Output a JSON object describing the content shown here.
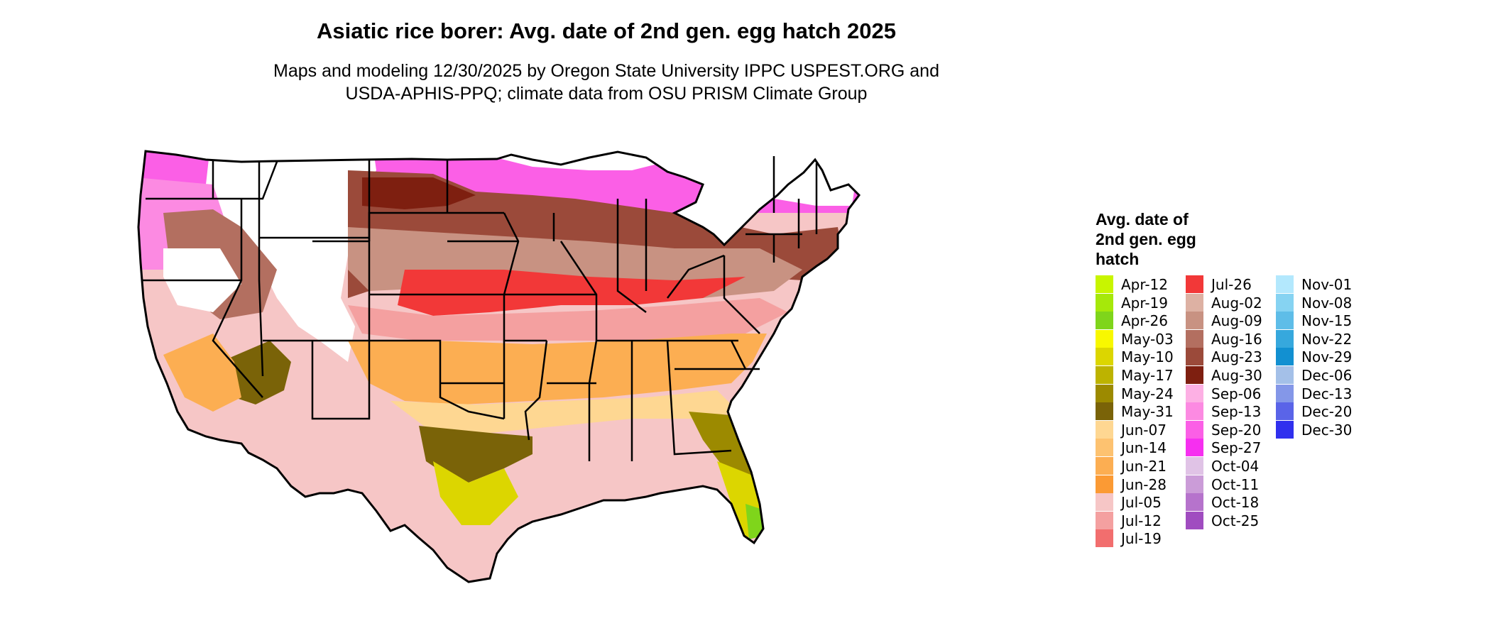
{
  "title": "Asiatic rice borer: Avg. date of 2nd gen. egg hatch 2025",
  "subtitle_lines": [
    "Maps and modeling 12/30/2025 by Oregon State University IPPC USPEST.ORG and",
    "USDA-APHIS-PPQ; climate data from OSU PRISM Climate Group"
  ],
  "legend": {
    "title_lines": [
      "Avg. date of",
      "2nd gen. egg",
      "hatch"
    ],
    "items": [
      {
        "label": "Apr-12",
        "color": "#c8f500"
      },
      {
        "label": "Apr-19",
        "color": "#a6e80a"
      },
      {
        "label": "Apr-26",
        "color": "#7fd51b"
      },
      {
        "label": "May-03",
        "color": "#f8f800"
      },
      {
        "label": "May-10",
        "color": "#dcd600"
      },
      {
        "label": "May-17",
        "color": "#bdb300"
      },
      {
        "label": "May-24",
        "color": "#9c8a00"
      },
      {
        "label": "May-31",
        "color": "#7a6308"
      },
      {
        "label": "Jun-07",
        "color": "#fed792"
      },
      {
        "label": "Jun-14",
        "color": "#fdc270"
      },
      {
        "label": "Jun-21",
        "color": "#fcae52"
      },
      {
        "label": "Jun-28",
        "color": "#fb9a34"
      },
      {
        "label": "Jul-05",
        "color": "#f6c6c6"
      },
      {
        "label": "Jul-12",
        "color": "#f4a0a0"
      },
      {
        "label": "Jul-19",
        "color": "#f26e6e"
      },
      {
        "label": "Jul-26",
        "color": "#f23838"
      },
      {
        "label": "Aug-02",
        "color": "#ddb1a3"
      },
      {
        "label": "Aug-09",
        "color": "#c89282"
      },
      {
        "label": "Aug-16",
        "color": "#b36f60"
      },
      {
        "label": "Aug-23",
        "color": "#9b4a3a"
      },
      {
        "label": "Aug-30",
        "color": "#7e1f10"
      },
      {
        "label": "Sep-06",
        "color": "#fdb0e4"
      },
      {
        "label": "Sep-13",
        "color": "#fc8ae2"
      },
      {
        "label": "Sep-20",
        "color": "#fb5fe6"
      },
      {
        "label": "Sep-27",
        "color": "#f62ff0"
      },
      {
        "label": "Oct-04",
        "color": "#e0c3e6"
      },
      {
        "label": "Oct-11",
        "color": "#cb9cd8"
      },
      {
        "label": "Oct-18",
        "color": "#b673cc"
      },
      {
        "label": "Oct-25",
        "color": "#a04cc0"
      },
      {
        "label": "Nov-01",
        "color": "#b3e8fd"
      },
      {
        "label": "Nov-08",
        "color": "#86d3f2"
      },
      {
        "label": "Nov-15",
        "color": "#5ebde8"
      },
      {
        "label": "Nov-22",
        "color": "#36a8dd"
      },
      {
        "label": "Nov-29",
        "color": "#1290d1"
      },
      {
        "label": "Dec-06",
        "color": "#a4c0e8"
      },
      {
        "label": "Dec-13",
        "color": "#8497e8"
      },
      {
        "label": "Dec-20",
        "color": "#5a64e8"
      },
      {
        "label": "Dec-30",
        "color": "#3030ee"
      }
    ]
  }
}
